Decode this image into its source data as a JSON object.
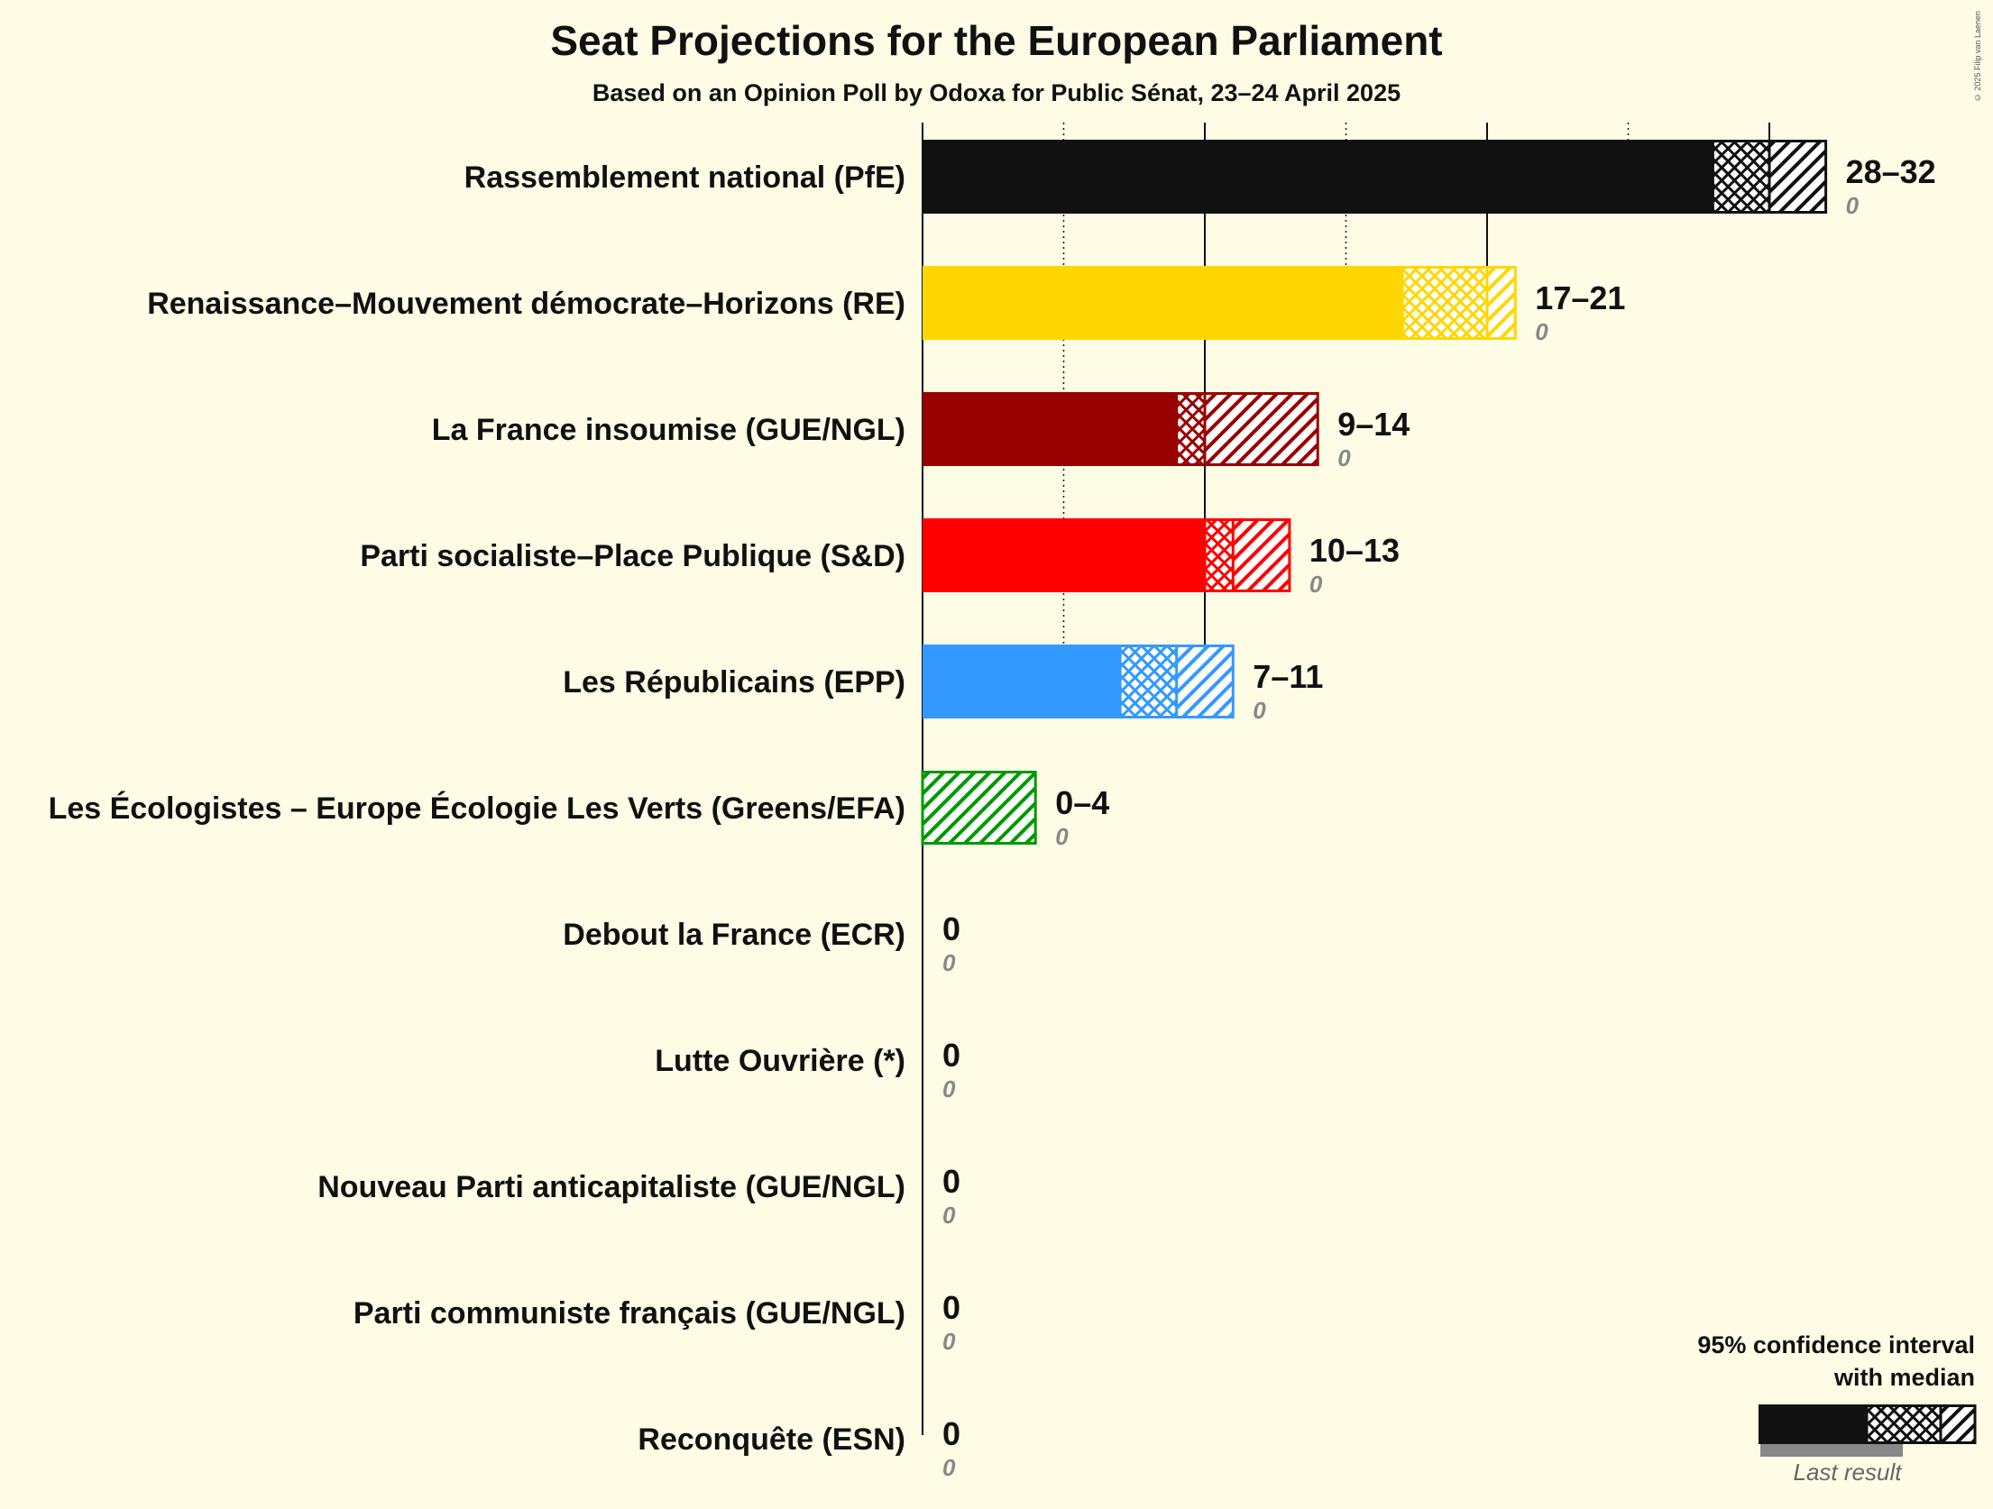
{
  "title": "Seat Projections for the European Parliament",
  "subtitle": "Based on an Opinion Poll by Odoxa for Public Sénat, 23–24 April 2025",
  "copyright": "© 2025 Filip van Laenen",
  "legend": {
    "title_line1": "95% confidence interval",
    "title_line2": "with median",
    "last_result": "Last result",
    "colors": {
      "solid": "#111111",
      "last": "#888888"
    }
  },
  "chart_data": {
    "type": "bar",
    "orientation": "horizontal",
    "title": "Seat Projections for the European Parliament",
    "subtitle": "Based on an Opinion Poll by Odoxa for Public Sénat, 23–24 April 2025",
    "xlim": [
      0,
      32
    ],
    "grid": {
      "solid_every": 10,
      "dotted_every": 5
    },
    "legend_position": "bottom-right",
    "parties": [
      {
        "name": "Rassemblement national (PfE)",
        "color": "#111111",
        "low": 28,
        "median": 30,
        "high": 32,
        "range_label": "28–32",
        "last_result": "0"
      },
      {
        "name": "Renaissance–Mouvement démocrate–Horizons (RE)",
        "color": "#ffd700",
        "low": 17,
        "median": 20,
        "high": 21,
        "range_label": "17–21",
        "last_result": "0"
      },
      {
        "name": "La France insoumise (GUE/NGL)",
        "color": "#990000",
        "low": 9,
        "median": 10,
        "high": 14,
        "range_label": "9–14",
        "last_result": "0"
      },
      {
        "name": "Parti socialiste–Place Publique (S&D)",
        "color": "#ff0000",
        "low": 10,
        "median": 11,
        "high": 13,
        "range_label": "10–13",
        "last_result": "0"
      },
      {
        "name": "Les Républicains (EPP)",
        "color": "#3399ff",
        "low": 7,
        "median": 9,
        "high": 11,
        "range_label": "7–11",
        "last_result": "0"
      },
      {
        "name": "Les Écologistes – Europe Écologie Les Verts (Greens/EFA)",
        "color": "#009900",
        "low": 0,
        "median": 0,
        "high": 4,
        "range_label": "0–4",
        "last_result": "0"
      },
      {
        "name": "Debout la France (ECR)",
        "color": "#111111",
        "low": 0,
        "median": 0,
        "high": 0,
        "range_label": "0",
        "last_result": "0"
      },
      {
        "name": "Lutte Ouvrière (*)",
        "color": "#111111",
        "low": 0,
        "median": 0,
        "high": 0,
        "range_label": "0",
        "last_result": "0"
      },
      {
        "name": "Nouveau Parti anticapitaliste (GUE/NGL)",
        "color": "#111111",
        "low": 0,
        "median": 0,
        "high": 0,
        "range_label": "0",
        "last_result": "0"
      },
      {
        "name": "Parti communiste français (GUE/NGL)",
        "color": "#111111",
        "low": 0,
        "median": 0,
        "high": 0,
        "range_label": "0",
        "last_result": "0"
      },
      {
        "name": "Reconquête (ESN)",
        "color": "#111111",
        "low": 0,
        "median": 0,
        "high": 0,
        "range_label": "0",
        "last_result": "0"
      }
    ]
  }
}
